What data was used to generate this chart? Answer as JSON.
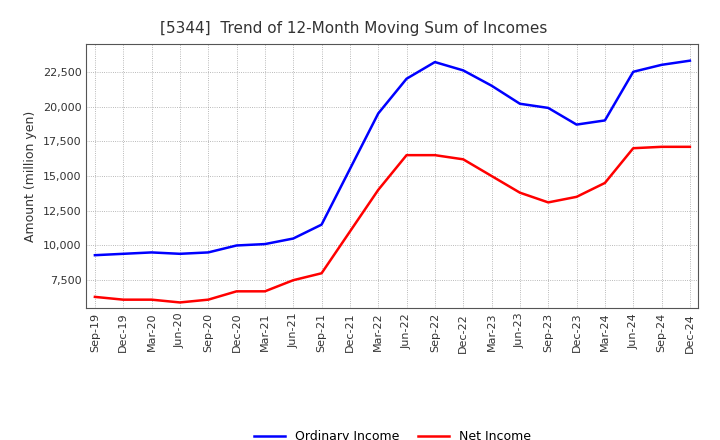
{
  "title": "[5344]  Trend of 12-Month Moving Sum of Incomes",
  "ylabel": "Amount (million yen)",
  "x_labels": [
    "Sep-19",
    "Dec-19",
    "Mar-20",
    "Jun-20",
    "Sep-20",
    "Dec-20",
    "Mar-21",
    "Jun-21",
    "Sep-21",
    "Dec-21",
    "Mar-22",
    "Jun-22",
    "Sep-22",
    "Dec-22",
    "Mar-23",
    "Jun-23",
    "Sep-23",
    "Dec-23",
    "Mar-24",
    "Jun-24",
    "Sep-24",
    "Dec-24"
  ],
  "ordinary_income": [
    9300,
    9400,
    9500,
    9400,
    9500,
    10000,
    10100,
    10500,
    11500,
    15500,
    19500,
    22000,
    23200,
    22600,
    21500,
    20200,
    19900,
    18700,
    19000,
    22500,
    23000,
    23300
  ],
  "net_income": [
    6300,
    6100,
    6100,
    5900,
    6100,
    6700,
    6700,
    7500,
    8000,
    11000,
    14000,
    16500,
    16500,
    16200,
    15000,
    13800,
    13100,
    13500,
    14500,
    17000,
    17100,
    17100
  ],
  "ordinary_color": "#0000ff",
  "net_color": "#ff0000",
  "ylim": [
    5500,
    24500
  ],
  "yticks": [
    7500,
    10000,
    12500,
    15000,
    17500,
    20000,
    22500
  ],
  "line_width": 1.8,
  "bg_color": "#ffffff",
  "grid_color": "#999999",
  "title_fontsize": 11,
  "title_color": "#333333",
  "tick_fontsize": 8,
  "ylabel_fontsize": 9,
  "legend_labels": [
    "Ordinary Income",
    "Net Income"
  ]
}
